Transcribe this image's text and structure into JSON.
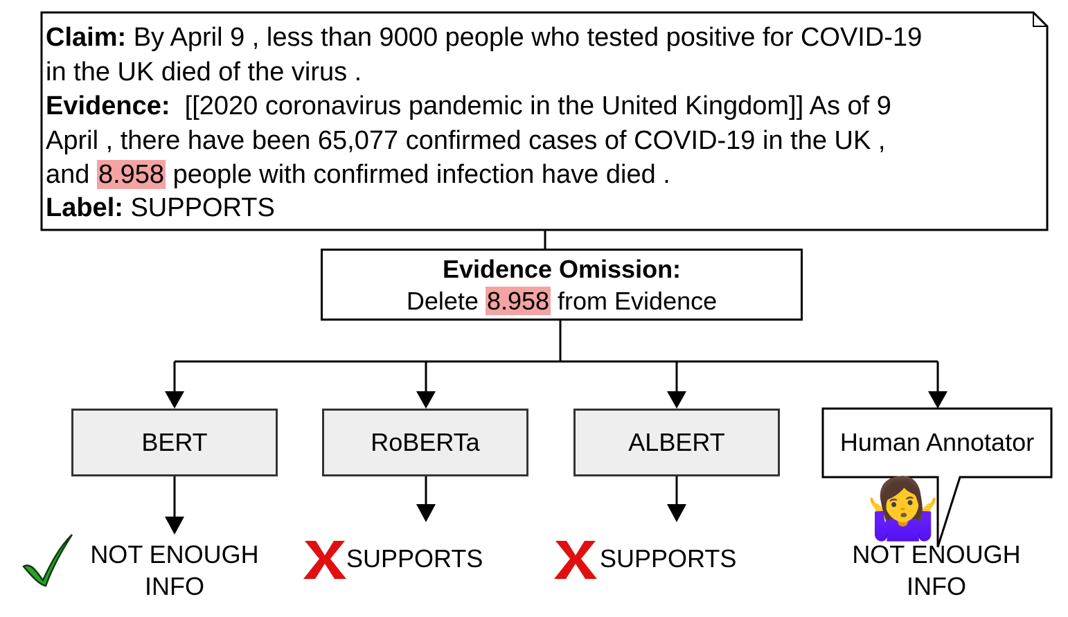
{
  "claim": {
    "label": "Claim:",
    "text": " By April 9 , less than 9000 people who tested positive for COVID-19",
    "text2": "in the UK died of the virus ."
  },
  "evidence": {
    "label": "Evidence:",
    "line1": "  [[2020 coronavirus pandemic in the United Kingdom]] As of 9",
    "line2": "April , there have been 65,077 confirmed cases of COVID-19 in the UK ,",
    "line3_pre": "and ",
    "highlight": "8.958",
    "line3_post": " people with confirmed infection have died ."
  },
  "label_row": {
    "label": "Label:",
    "value": " SUPPORTS"
  },
  "omission": {
    "title": "Evidence Omission:",
    "pre": "Delete ",
    "highlight": "8.958",
    "post": " from Evidence"
  },
  "models": [
    {
      "name": "BERT",
      "outcome": "NOT ENOUGH INFO",
      "outcome_line1": "NOT ENOUGH",
      "outcome_line2": "INFO",
      "mark": "check-icon"
    },
    {
      "name": "RoBERTa",
      "outcome": "SUPPORTS",
      "mark": "cross-icon"
    },
    {
      "name": "ALBERT",
      "outcome": "SUPPORTS",
      "mark": "cross-icon"
    }
  ],
  "human": {
    "name": "Human Annotator",
    "outcome_line1": "NOT ENOUGH",
    "outcome_line2": "INFO",
    "emoji": "🤷‍♀️",
    "icon": "person-shrugging-icon"
  },
  "colors": {
    "highlight": "#f4a3a3",
    "model_fill": "#eeeeee",
    "check": "#2e9e2e",
    "cross": "#e01010"
  }
}
